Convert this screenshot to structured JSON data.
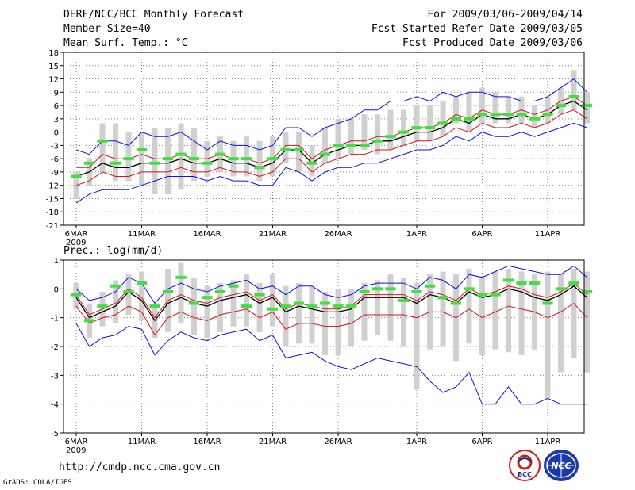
{
  "header": {
    "title": "DERF/NCC/BCC Monthly Forecast",
    "member_size": "Member Size=40",
    "variable1": "Mean Surf. Temp.: °C",
    "period": "For 2009/03/06-2009/04/14",
    "started": "Fcst Started Refer Date 2009/03/05",
    "produced": "Fcst Produced Date 2009/03/06"
  },
  "panel2_label": "Prec.: log(mm/d)",
  "footer": {
    "url": "http://cmdp.ncc.cma.gov.cn",
    "grads": "GrADS: COLA/IGES",
    "logo1": "BCC",
    "logo2": "NCC"
  },
  "colors": {
    "mean": "#000000",
    "spread": "#d8101c",
    "envelope": "#1010e0",
    "box": "#d0d0d0",
    "obs": "#40e040",
    "grid": "#808080"
  },
  "chart_data": [
    {
      "type": "line",
      "title": "Mean Surf. Temp.: °C",
      "x_tick_labels": [
        "6MAR",
        "11MAR",
        "16MAR",
        "21MAR",
        "26MAR",
        "1APR",
        "6APR",
        "11APR"
      ],
      "x_tick_days": [
        1,
        6,
        11,
        16,
        21,
        27,
        32,
        37
      ],
      "year_label": "2009",
      "ylim": [
        -21,
        18
      ],
      "yticks": [
        -21,
        -18,
        -15,
        -12,
        -9,
        -6,
        -3,
        0,
        3,
        6,
        9,
        12,
        15,
        18
      ],
      "days": [
        1,
        2,
        3,
        4,
        5,
        6,
        7,
        8,
        9,
        10,
        11,
        12,
        13,
        14,
        15,
        16,
        17,
        18,
        19,
        20,
        21,
        22,
        23,
        24,
        25,
        26,
        27,
        28,
        29,
        30,
        31,
        32,
        33,
        34,
        35,
        36,
        37,
        38,
        39,
        40
      ],
      "series": [
        {
          "name": "mean",
          "values": [
            -10,
            -9,
            -7,
            -8,
            -8,
            -7,
            -7,
            -7,
            -6,
            -7,
            -7,
            -6,
            -7,
            -7,
            -8,
            -7,
            -4,
            -4,
            -7,
            -5,
            -4,
            -3,
            -3,
            -2,
            -2,
            -1,
            0,
            0,
            1,
            3,
            2,
            4,
            3,
            3,
            4,
            3,
            4,
            6,
            7,
            5
          ]
        },
        {
          "name": "upper_spread",
          "values": [
            -8,
            -8,
            -5,
            -6,
            -6,
            -5,
            -6,
            -6,
            -5,
            -6,
            -6,
            -5,
            -6,
            -6,
            -7,
            -6,
            -3,
            -3,
            -6,
            -4,
            -3,
            -2,
            -2,
            -1,
            -1,
            0,
            1,
            1,
            2,
            4,
            3,
            5,
            4,
            4,
            5,
            4,
            5,
            7,
            8,
            6
          ]
        },
        {
          "name": "lower_spread",
          "values": [
            -12,
            -11,
            -9,
            -10,
            -10,
            -9,
            -9,
            -9,
            -8,
            -9,
            -9,
            -8,
            -9,
            -9,
            -10,
            -9,
            -6,
            -6,
            -9,
            -7,
            -6,
            -5,
            -5,
            -4,
            -4,
            -3,
            -2,
            -2,
            -1,
            1,
            0,
            2,
            1,
            1,
            2,
            1,
            2,
            4,
            5,
            3
          ]
        },
        {
          "name": "upper_envelope",
          "values": [
            -4,
            -5,
            -2,
            -2,
            -3,
            0,
            -1,
            -1,
            0,
            -2,
            -4,
            -2,
            -3,
            -3,
            -4,
            -3,
            1,
            1,
            -1,
            1,
            2,
            3,
            5,
            5,
            7,
            7,
            8,
            7,
            9,
            8,
            9,
            9,
            8,
            8,
            7,
            7,
            8,
            10,
            12,
            9
          ]
        },
        {
          "name": "lower_envelope",
          "values": [
            -16,
            -14,
            -13,
            -13,
            -13,
            -12,
            -11,
            -10,
            -10,
            -10,
            -11,
            -10,
            -11,
            -11,
            -12,
            -12,
            -8,
            -9,
            -11,
            -9,
            -8,
            -8,
            -7,
            -7,
            -6,
            -5,
            -4,
            -4,
            -3,
            -1,
            -2,
            0,
            -1,
            -1,
            0,
            -1,
            0,
            1,
            2,
            1
          ]
        },
        {
          "name": "box_top",
          "values": [
            -9,
            -6,
            2,
            2,
            0,
            0,
            1,
            1,
            2,
            1,
            -2,
            -1,
            -2,
            -1,
            -2,
            -1,
            0,
            0,
            -3,
            1,
            3,
            3,
            4,
            4,
            5,
            5,
            6,
            6,
            7,
            8,
            9,
            10,
            9,
            8,
            8,
            6,
            8,
            10,
            14,
            9
          ]
        },
        {
          "name": "box_bottom",
          "values": [
            -15,
            -12,
            -9,
            -11,
            -11,
            -12,
            -14,
            -14,
            -13,
            -11,
            -10,
            -9,
            -10,
            -10,
            -11,
            -10,
            -7,
            -9,
            -10,
            -7,
            -6,
            -5,
            -4,
            -5,
            -4,
            -3,
            -2,
            -2,
            -1,
            2,
            0,
            2,
            2,
            2,
            2,
            1,
            2,
            4,
            5,
            2
          ]
        },
        {
          "name": "observed",
          "values": [
            -10,
            -7,
            -2,
            -7,
            -6,
            -4,
            -7,
            -6,
            -5,
            -6,
            -7,
            -5,
            -6,
            -6,
            -8,
            -6,
            -4,
            -4,
            -7,
            -5,
            -3,
            -3,
            -3,
            -2,
            -1,
            0,
            1,
            1,
            2,
            3,
            3,
            4,
            4,
            4,
            4,
            3,
            4,
            6,
            8,
            6
          ]
        }
      ]
    },
    {
      "type": "line",
      "title": "Prec.: log(mm/d)",
      "x_tick_labels": [
        "6MAR",
        "11MAR",
        "16MAR",
        "21MAR",
        "26MAR",
        "1APR",
        "6APR",
        "11APR"
      ],
      "x_tick_days": [
        1,
        6,
        11,
        16,
        21,
        27,
        32,
        37
      ],
      "year_label": "2009",
      "ylim": [
        -5,
        1
      ],
      "yticks": [
        -5,
        -4,
        -3,
        -2,
        -1,
        0,
        1
      ],
      "days": [
        1,
        2,
        3,
        4,
        5,
        6,
        7,
        8,
        9,
        10,
        11,
        12,
        13,
        14,
        15,
        16,
        17,
        18,
        19,
        20,
        21,
        22,
        23,
        24,
        25,
        26,
        27,
        28,
        29,
        30,
        31,
        32,
        33,
        34,
        35,
        36,
        37,
        38,
        39,
        40
      ],
      "series": [
        {
          "name": "mean",
          "values": [
            -0.3,
            -1.0,
            -0.8,
            -0.6,
            -0.1,
            -0.4,
            -1.1,
            -0.5,
            -0.3,
            -0.5,
            -0.6,
            -0.4,
            -0.3,
            -0.2,
            -0.5,
            -0.3,
            -0.8,
            -0.6,
            -0.7,
            -0.8,
            -0.8,
            -0.7,
            -0.3,
            -0.3,
            -0.3,
            -0.3,
            -0.5,
            -0.2,
            -0.3,
            -0.5,
            -0.1,
            -0.3,
            -0.2,
            0.0,
            -0.1,
            -0.3,
            -0.4,
            -0.2,
            0.1,
            -0.3
          ]
        },
        {
          "name": "upper_spread",
          "values": [
            -0.2,
            -0.9,
            -0.7,
            -0.5,
            0.0,
            -0.3,
            -1.0,
            -0.4,
            -0.2,
            -0.4,
            -0.5,
            -0.3,
            -0.2,
            -0.1,
            -0.4,
            -0.2,
            -0.7,
            -0.5,
            -0.6,
            -0.7,
            -0.7,
            -0.6,
            -0.2,
            -0.2,
            -0.2,
            -0.2,
            -0.4,
            -0.1,
            -0.2,
            -0.4,
            0.0,
            -0.2,
            -0.1,
            0.1,
            0.0,
            -0.2,
            -0.3,
            -0.1,
            0.2,
            -0.2
          ]
        },
        {
          "name": "lower_spread",
          "values": [
            -0.6,
            -1.2,
            -1.0,
            -0.9,
            -0.6,
            -0.8,
            -1.6,
            -1.0,
            -0.8,
            -1.0,
            -1.1,
            -0.9,
            -0.8,
            -0.7,
            -1.0,
            -0.8,
            -1.4,
            -1.2,
            -1.2,
            -1.3,
            -1.3,
            -1.2,
            -0.9,
            -0.9,
            -0.9,
            -0.9,
            -1.0,
            -0.8,
            -0.8,
            -1.0,
            -0.7,
            -1.0,
            -0.8,
            -0.6,
            -0.7,
            -0.8,
            -1.0,
            -0.8,
            -0.5,
            -1.0
          ]
        },
        {
          "name": "upper_envelope",
          "values": [
            0.0,
            -0.4,
            -0.3,
            -0.1,
            0.4,
            0.2,
            -0.5,
            0.0,
            0.2,
            0.0,
            -0.1,
            0.1,
            0.2,
            0.3,
            0.0,
            0.1,
            -0.2,
            0.1,
            0.1,
            -0.2,
            -0.3,
            -0.2,
            0.1,
            0.2,
            0.2,
            0.2,
            0.0,
            0.4,
            0.3,
            0.0,
            0.5,
            0.4,
            0.6,
            0.8,
            0.7,
            0.6,
            0.5,
            0.5,
            0.8,
            0.4
          ]
        },
        {
          "name": "lower_envelope",
          "values": [
            -1.2,
            -2.0,
            -1.7,
            -1.6,
            -1.3,
            -1.4,
            -2.3,
            -1.8,
            -1.5,
            -1.7,
            -1.8,
            -1.6,
            -1.5,
            -1.4,
            -1.8,
            -1.6,
            -2.4,
            -2.3,
            -2.2,
            -2.5,
            -2.7,
            -2.8,
            -2.6,
            -2.4,
            -2.5,
            -2.6,
            -2.7,
            -3.2,
            -3.6,
            -3.4,
            -2.9,
            -4.0,
            -4.0,
            -3.4,
            -4.0,
            -4.0,
            -3.8,
            -4.0,
            -4.0,
            -4.0
          ]
        },
        {
          "name": "box_top",
          "values": [
            0.2,
            -0.5,
            -0.1,
            0.3,
            0.5,
            0.6,
            -0.6,
            0.7,
            0.9,
            0.4,
            0.1,
            0.2,
            0.3,
            0.5,
            0.2,
            0.5,
            0.1,
            0.2,
            0.1,
            -0.1,
            0.0,
            0.0,
            0.2,
            0.3,
            0.5,
            0.4,
            0.2,
            0.5,
            0.6,
            0.5,
            0.7,
            0.4,
            0.6,
            0.7,
            0.6,
            0.5,
            0.6,
            0.5,
            0.7,
            0.6
          ]
        },
        {
          "name": "box_bottom",
          "values": [
            -0.7,
            -1.7,
            -1.3,
            -1.2,
            -0.9,
            -1.1,
            -1.7,
            -1.5,
            -1.2,
            -1.6,
            -1.7,
            -1.5,
            -1.3,
            -1.3,
            -1.5,
            -1.3,
            -2.0,
            -1.9,
            -1.9,
            -2.3,
            -2.3,
            -2.0,
            -1.8,
            -1.6,
            -1.8,
            -2.0,
            -3.5,
            -2.1,
            -2.0,
            -2.5,
            -1.9,
            -2.3,
            -2.1,
            -2.2,
            -2.3,
            -2.1,
            -3.8,
            -2.9,
            -2.4,
            -2.9
          ]
        },
        {
          "name": "observed",
          "values": [
            -0.2,
            -1.1,
            -0.6,
            0.1,
            -0.1,
            0.2,
            -0.6,
            -0.1,
            0.4,
            -0.5,
            -0.3,
            -0.1,
            0.1,
            -0.6,
            -0.2,
            -0.7,
            -0.6,
            -0.5,
            -0.6,
            -0.5,
            -0.6,
            -0.6,
            -0.1,
            0.0,
            0.0,
            -0.4,
            -0.1,
            0.1,
            -0.3,
            -0.5,
            0.0,
            -0.2,
            -0.2,
            0.3,
            0.2,
            0.2,
            -0.5,
            0.0,
            0.2,
            -0.1
          ]
        }
      ]
    }
  ]
}
